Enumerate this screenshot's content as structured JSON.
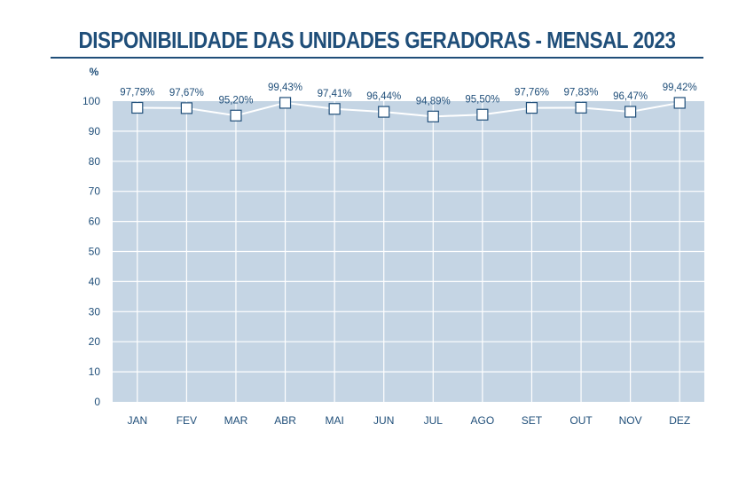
{
  "chart_data": {
    "type": "line",
    "title": "DISPONIBILIDADE DAS UNIDADES GERADORAS - MENSAL 2023",
    "ylabel": "%",
    "xlabel": "",
    "categories": [
      "JAN",
      "FEV",
      "MAR",
      "ABR",
      "MAI",
      "JUN",
      "JUL",
      "AGO",
      "SET",
      "OUT",
      "NOV",
      "DEZ"
    ],
    "values": [
      97.79,
      97.67,
      95.2,
      99.43,
      97.41,
      96.44,
      94.89,
      95.5,
      97.76,
      97.83,
      96.47,
      99.42
    ],
    "data_labels": [
      "97,79%",
      "97,67%",
      "95,20%",
      "99,43%",
      "97,41%",
      "96,44%",
      "94,89%",
      "95,50%",
      "97,76%",
      "97,83%",
      "96,47%",
      "99,42%"
    ],
    "yticks": [
      0,
      10,
      20,
      30,
      40,
      50,
      60,
      70,
      80,
      90,
      100
    ],
    "ylim": [
      0,
      100
    ],
    "grid": true,
    "colors": {
      "plot_background": "#c5d5e4",
      "grid": "#ffffff",
      "line": "#ffffff",
      "marker_fill": "#ffffff",
      "marker_stroke": "#1f4e79",
      "text": "#1f4e79"
    }
  }
}
